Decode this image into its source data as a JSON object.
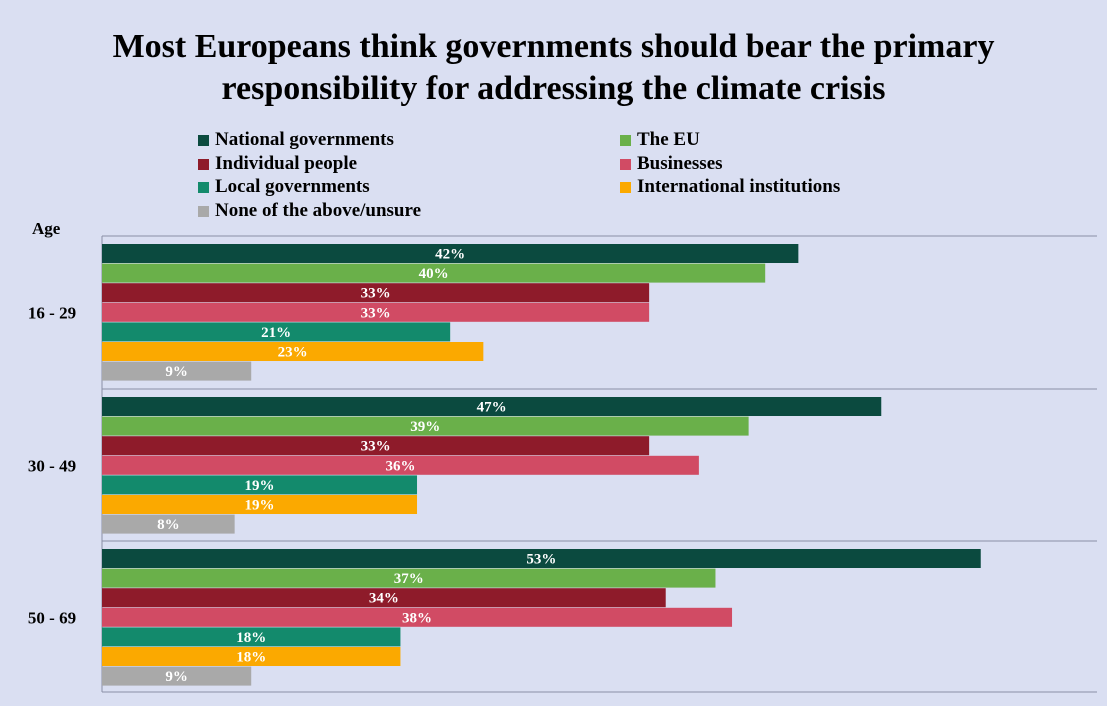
{
  "chart_data": {
    "type": "bar",
    "orientation": "horizontal",
    "title": "Most Europeans think governments should bear the primary responsibility for addressing the climate crisis",
    "title_lines": [
      "Most Europeans think governments should bear the primary",
      "responsibility for addressing the climate crisis"
    ],
    "group_axis_title": "Age",
    "categories": [
      "16 - 29",
      "30 - 49",
      "50 - 69"
    ],
    "value_format": "{v}%",
    "xlim": [
      0,
      60
    ],
    "legend_position": "top",
    "series": [
      {
        "name": "National governments",
        "color": "#0b4a3f",
        "values": [
          42,
          47,
          53
        ]
      },
      {
        "name": "The EU",
        "color": "#6ab04a",
        "values": [
          40,
          39,
          37
        ]
      },
      {
        "name": "Individual people",
        "color": "#8e1b2a",
        "values": [
          33,
          33,
          34
        ]
      },
      {
        "name": "Businesses",
        "color": "#d14b64",
        "values": [
          33,
          36,
          38
        ]
      },
      {
        "name": "Local governments",
        "color": "#138a6c",
        "values": [
          21,
          19,
          18
        ]
      },
      {
        "name": "International institutions",
        "color": "#fba900",
        "values": [
          23,
          19,
          18
        ]
      },
      {
        "name": "None of the above/unsure",
        "color": "#a9a9a9",
        "values": [
          9,
          8,
          9
        ]
      }
    ]
  }
}
